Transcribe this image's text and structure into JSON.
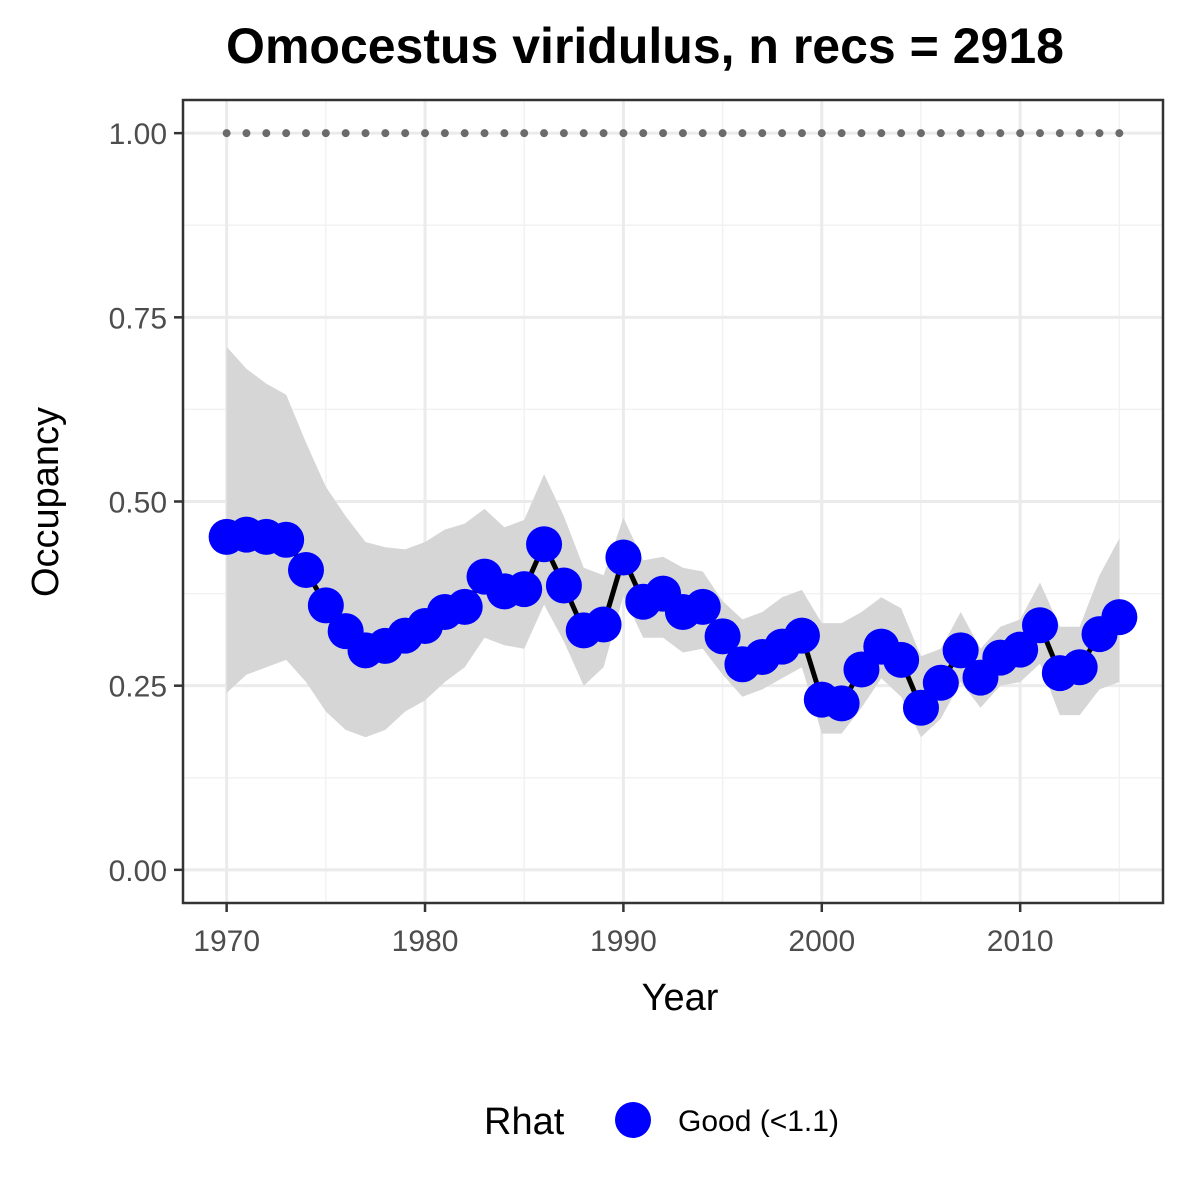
{
  "chart_data": {
    "type": "line",
    "title": "Omocestus viridulus, n recs = 2918",
    "xlabel": "Year",
    "ylabel": "Occupancy",
    "xlim": [
      1967.8,
      2017.2
    ],
    "ylim": [
      -0.045,
      1.045
    ],
    "x_ticks": [
      1970,
      1980,
      1990,
      2000,
      2010
    ],
    "x_tick_labels": [
      "1970",
      "1980",
      "1990",
      "2000",
      "2010"
    ],
    "y_ticks": [
      0,
      0.25,
      0.5,
      0.75,
      1.0
    ],
    "y_tick_labels": [
      "0.00",
      "0.25",
      "0.50",
      "0.75",
      "1.00"
    ],
    "grid": true,
    "x": [
      1970,
      1971,
      1972,
      1973,
      1974,
      1975,
      1976,
      1977,
      1978,
      1979,
      1980,
      1981,
      1982,
      1983,
      1984,
      1985,
      1986,
      1987,
      1988,
      1989,
      1990,
      1991,
      1992,
      1993,
      1994,
      1995,
      1996,
      1997,
      1998,
      1999,
      2000,
      2001,
      2002,
      2003,
      2004,
      2005,
      2006,
      2007,
      2008,
      2009,
      2010,
      2011,
      2012,
      2013,
      2014,
      2015
    ],
    "series": [
      {
        "name": "Good (<1.1)",
        "values": [
          0.452,
          0.455,
          0.452,
          0.448,
          0.407,
          0.359,
          0.324,
          0.298,
          0.304,
          0.318,
          0.331,
          0.35,
          0.357,
          0.398,
          0.378,
          0.381,
          0.442,
          0.386,
          0.325,
          0.333,
          0.424,
          0.364,
          0.375,
          0.35,
          0.357,
          0.317,
          0.279,
          0.289,
          0.303,
          0.318,
          0.231,
          0.226,
          0.272,
          0.303,
          0.285,
          0.22,
          0.254,
          0.298,
          0.261,
          0.288,
          0.299,
          0.332,
          0.267,
          0.275,
          0.32,
          0.343
        ],
        "color": "#0000ff",
        "line_color": "#000000"
      }
    ],
    "ribbon_upper": [
      0.71,
      0.68,
      0.66,
      0.645,
      0.58,
      0.52,
      0.48,
      0.445,
      0.438,
      0.435,
      0.445,
      0.462,
      0.47,
      0.49,
      0.465,
      0.475,
      0.537,
      0.48,
      0.41,
      0.4,
      0.478,
      0.42,
      0.425,
      0.41,
      0.405,
      0.365,
      0.34,
      0.35,
      0.37,
      0.38,
      0.335,
      0.335,
      0.35,
      0.37,
      0.355,
      0.29,
      0.3,
      0.35,
      0.3,
      0.33,
      0.34,
      0.39,
      0.33,
      0.33,
      0.4,
      0.45
    ],
    "ribbon_lower": [
      0.24,
      0.265,
      0.275,
      0.285,
      0.255,
      0.215,
      0.19,
      0.18,
      0.19,
      0.215,
      0.23,
      0.255,
      0.275,
      0.315,
      0.305,
      0.3,
      0.36,
      0.31,
      0.25,
      0.275,
      0.372,
      0.315,
      0.315,
      0.295,
      0.3,
      0.265,
      0.235,
      0.245,
      0.26,
      0.275,
      0.185,
      0.185,
      0.22,
      0.26,
      0.235,
      0.18,
      0.205,
      0.255,
      0.22,
      0.25,
      0.255,
      0.28,
      0.21,
      0.21,
      0.245,
      0.255
    ],
    "ribbon_color": "#d6d6d6",
    "reference_line": {
      "y": 1.0,
      "style": "dotted",
      "color": "#6b6b6b"
    },
    "legend": {
      "title": "Rhat",
      "entries": [
        {
          "label": "Good (<1.1)",
          "color": "#0000ff"
        }
      ],
      "position": "bottom"
    }
  }
}
